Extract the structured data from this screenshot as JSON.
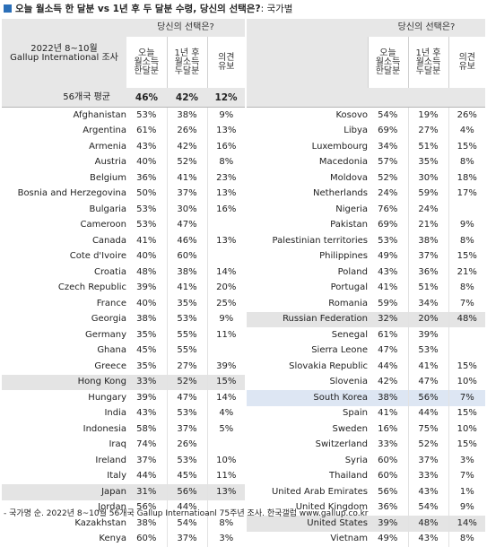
{
  "title": "오늘 월소득 한 달분 vs 1년 후 두 달분 수령, 당신의 선택은?",
  "title_suffix": ": 국가별",
  "survey_label_line1": "2022년 8~10월",
  "survey_label_line2": "Gallup International 조사",
  "choice_header": "당신의 선택은?",
  "col_today": [
    "오늘",
    "월소득",
    "한달분"
  ],
  "col_later": [
    "1년 후",
    "월소득",
    "두달분"
  ],
  "col_undecided": [
    "의견",
    "유보"
  ],
  "average": {
    "label": "56개국 평균",
    "today": "46%",
    "later": "42%",
    "undecided": "12%"
  },
  "left_rows": [
    {
      "country": "Afghanistan",
      "today": "53%",
      "later": "38%",
      "undecided": "9%"
    },
    {
      "country": "Argentina",
      "today": "61%",
      "later": "26%",
      "undecided": "13%"
    },
    {
      "country": "Armenia",
      "today": "43%",
      "later": "42%",
      "undecided": "16%"
    },
    {
      "country": "Austria",
      "today": "40%",
      "later": "52%",
      "undecided": "8%"
    },
    {
      "country": "Belgium",
      "today": "36%",
      "later": "41%",
      "undecided": "23%"
    },
    {
      "country": "Bosnia and Herzegovina",
      "today": "50%",
      "later": "37%",
      "undecided": "13%"
    },
    {
      "country": "Bulgaria",
      "today": "53%",
      "later": "30%",
      "undecided": "16%"
    },
    {
      "country": "Cameroon",
      "today": "53%",
      "later": "47%",
      "undecided": ""
    },
    {
      "country": "Canada",
      "today": "41%",
      "later": "46%",
      "undecided": "13%"
    },
    {
      "country": "Cote d'Ivoire",
      "today": "40%",
      "later": "60%",
      "undecided": ""
    },
    {
      "country": "Croatia",
      "today": "48%",
      "later": "38%",
      "undecided": "14%"
    },
    {
      "country": "Czech Republic",
      "today": "39%",
      "later": "41%",
      "undecided": "20%"
    },
    {
      "country": "France",
      "today": "40%",
      "later": "35%",
      "undecided": "25%"
    },
    {
      "country": "Georgia",
      "today": "38%",
      "later": "53%",
      "undecided": "9%"
    },
    {
      "country": "Germany",
      "today": "35%",
      "later": "55%",
      "undecided": "11%"
    },
    {
      "country": "Ghana",
      "today": "45%",
      "later": "55%",
      "undecided": ""
    },
    {
      "country": "Greece",
      "today": "35%",
      "later": "27%",
      "undecided": "39%"
    },
    {
      "country": "Hong Kong",
      "today": "33%",
      "later": "52%",
      "undecided": "15%",
      "highlight": true
    },
    {
      "country": "Hungary",
      "today": "39%",
      "later": "47%",
      "undecided": "14%"
    },
    {
      "country": "India",
      "today": "43%",
      "later": "53%",
      "undecided": "4%"
    },
    {
      "country": "Indonesia",
      "today": "58%",
      "later": "37%",
      "undecided": "5%"
    },
    {
      "country": "Iraq",
      "today": "74%",
      "later": "26%",
      "undecided": ""
    },
    {
      "country": "Ireland",
      "today": "37%",
      "later": "53%",
      "undecided": "10%"
    },
    {
      "country": "Italy",
      "today": "44%",
      "later": "45%",
      "undecided": "11%"
    },
    {
      "country": "Japan",
      "today": "31%",
      "later": "56%",
      "undecided": "13%",
      "highlight": true
    },
    {
      "country": "Jordan",
      "today": "56%",
      "later": "44%",
      "undecided": ""
    },
    {
      "country": "Kazakhstan",
      "today": "38%",
      "later": "54%",
      "undecided": "8%"
    },
    {
      "country": "Kenya",
      "today": "60%",
      "later": "37%",
      "undecided": "3%"
    }
  ],
  "right_rows": [
    {
      "country": "Kosovo",
      "today": "54%",
      "later": "19%",
      "undecided": "26%"
    },
    {
      "country": "Libya",
      "today": "69%",
      "later": "27%",
      "undecided": "4%"
    },
    {
      "country": "Luxembourg",
      "today": "34%",
      "later": "51%",
      "undecided": "15%"
    },
    {
      "country": "Macedonia",
      "today": "57%",
      "later": "35%",
      "undecided": "8%"
    },
    {
      "country": "Moldova",
      "today": "52%",
      "later": "30%",
      "undecided": "18%"
    },
    {
      "country": "Netherlands",
      "today": "24%",
      "later": "59%",
      "undecided": "17%"
    },
    {
      "country": "Nigeria",
      "today": "76%",
      "later": "24%",
      "undecided": ""
    },
    {
      "country": "Pakistan",
      "today": "69%",
      "later": "21%",
      "undecided": "9%"
    },
    {
      "country": "Palestinian territories",
      "today": "53%",
      "later": "38%",
      "undecided": "8%"
    },
    {
      "country": "Philippines",
      "today": "49%",
      "later": "37%",
      "undecided": "15%"
    },
    {
      "country": "Poland",
      "today": "43%",
      "later": "36%",
      "undecided": "21%"
    },
    {
      "country": "Portugal",
      "today": "41%",
      "later": "51%",
      "undecided": "8%"
    },
    {
      "country": "Romania",
      "today": "59%",
      "later": "34%",
      "undecided": "7%"
    },
    {
      "country": "Russian Federation",
      "today": "32%",
      "later": "20%",
      "undecided": "48%",
      "highlight": true
    },
    {
      "country": "Senegal",
      "today": "61%",
      "later": "39%",
      "undecided": ""
    },
    {
      "country": "Sierra Leone",
      "today": "47%",
      "later": "53%",
      "undecided": ""
    },
    {
      "country": "Slovakia Republic",
      "today": "44%",
      "later": "41%",
      "undecided": "15%"
    },
    {
      "country": "Slovenia",
      "today": "42%",
      "later": "47%",
      "undecided": "10%"
    },
    {
      "country": "South Korea",
      "today": "38%",
      "later": "56%",
      "undecided": "7%",
      "korea": true
    },
    {
      "country": "Spain",
      "today": "41%",
      "later": "44%",
      "undecided": "15%"
    },
    {
      "country": "Sweden",
      "today": "16%",
      "later": "75%",
      "undecided": "10%"
    },
    {
      "country": "Switzerland",
      "today": "33%",
      "later": "52%",
      "undecided": "15%"
    },
    {
      "country": "Syria",
      "today": "60%",
      "later": "37%",
      "undecided": "3%"
    },
    {
      "country": "Thailand",
      "today": "60%",
      "later": "33%",
      "undecided": "7%"
    },
    {
      "country": "United Arab Emirates",
      "today": "56%",
      "later": "43%",
      "undecided": "1%"
    },
    {
      "country": "United Kingdom",
      "today": "36%",
      "later": "54%",
      "undecided": "9%"
    },
    {
      "country": "United States",
      "today": "39%",
      "later": "48%",
      "undecided": "14%",
      "highlight": true
    },
    {
      "country": "Vietnam",
      "today": "49%",
      "later": "43%",
      "undecided": "8%"
    }
  ],
  "footer": "- 국가명 순. 2022년 8~10월 56개국 Gallup Internatioanl 75주년 조사. 한국갤럽 www.gallup.co.kr",
  "colors": {
    "title_square": "#2b6fb8",
    "header_gray": "#e7e7e7",
    "korea_highlight": "#dde6f3"
  }
}
